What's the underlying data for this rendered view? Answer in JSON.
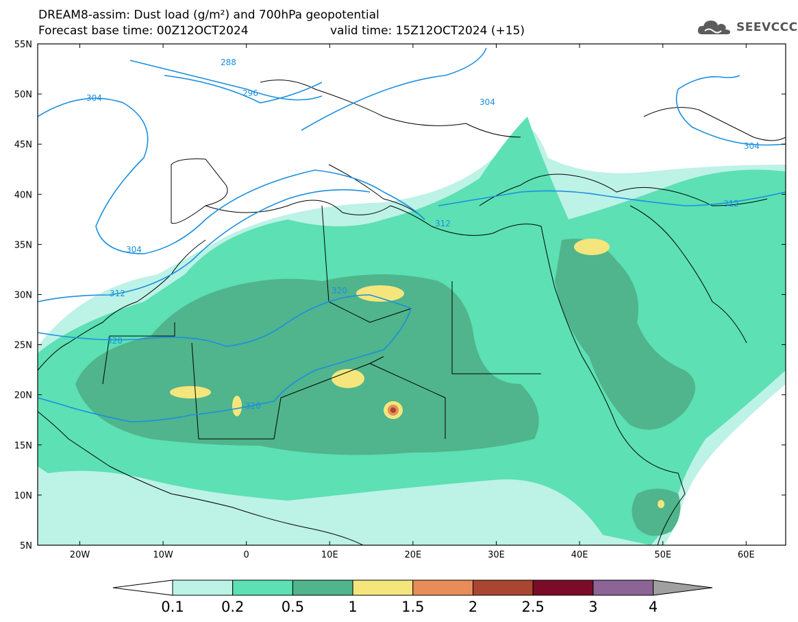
{
  "header": {
    "title_line1": "DREAM8-assim: Dust load (g/m²) and 700hPa geopotential",
    "title_line2_left": "Forecast base time: 00Z12OCT2024",
    "title_line2_right": "valid time: 15Z12OCT2024 (+15)",
    "logo_text": "SEEVCCC",
    "logo_icon": "cloud-icon"
  },
  "map": {
    "lat_labels": [
      "55N",
      "50N",
      "45N",
      "40N",
      "35N",
      "30N",
      "25N",
      "20N",
      "15N",
      "10N",
      "5N"
    ],
    "lon_labels": [
      "20W",
      "10W",
      "0",
      "10E",
      "20E",
      "30E",
      "40E",
      "50E",
      "60E"
    ],
    "contour_labels": [
      "288",
      "296",
      "304",
      "304",
      "304",
      "304",
      "312",
      "312",
      "312",
      "320",
      "320",
      "320"
    ]
  },
  "colorbar": {
    "labels": [
      "0.1",
      "0.2",
      "0.5",
      "1",
      "1.5",
      "2",
      "2.5",
      "3",
      "4"
    ],
    "colors": [
      "#bdf2e6",
      "#5ce0b4",
      "#50b48c",
      "#f4e67c",
      "#e88c5a",
      "#a84632",
      "#7a0c2a",
      "#8c6496",
      "#a0a0a0"
    ]
  }
}
